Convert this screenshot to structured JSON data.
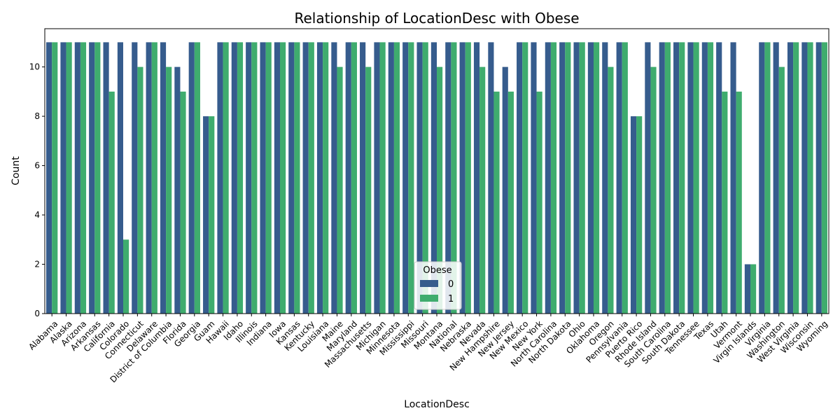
{
  "chart_data": {
    "type": "bar",
    "title": "Relationship of LocationDesc with Obese",
    "xlabel": "LocationDesc",
    "ylabel": "Count",
    "ylim": [
      0,
      11.55
    ],
    "yticks": [
      0,
      2,
      4,
      6,
      8,
      10
    ],
    "grid": false,
    "legend": {
      "title": "Obese",
      "placement": "lower-center"
    },
    "categories": [
      "Alabama",
      "Alaska",
      "Arizona",
      "Arkansas",
      "California",
      "Colorado",
      "Connecticut",
      "Delaware",
      "District of Columbia",
      "Florida",
      "Georgia",
      "Guam",
      "Hawaii",
      "Idaho",
      "Illinois",
      "Indiana",
      "Iowa",
      "Kansas",
      "Kentucky",
      "Louisiana",
      "Maine",
      "Maryland",
      "Massachusetts",
      "Michigan",
      "Minnesota",
      "Mississippi",
      "Missouri",
      "Montana",
      "National",
      "Nebraska",
      "Nevada",
      "New Hampshire",
      "New Jersey",
      "New Mexico",
      "New York",
      "North Carolina",
      "North Dakota",
      "Ohio",
      "Oklahoma",
      "Oregon",
      "Pennsylvania",
      "Puerto Rico",
      "Rhode Island",
      "South Carolina",
      "South Dakota",
      "Tennessee",
      "Texas",
      "Utah",
      "Vermont",
      "Virgin Islands",
      "Virginia",
      "Washington",
      "West Virginia",
      "Wisconsin",
      "Wyoming"
    ],
    "series": [
      {
        "name": "0",
        "color": "#365c8d",
        "values": [
          11,
          11,
          11,
          11,
          11,
          11,
          11,
          11,
          11,
          10,
          11,
          8,
          11,
          11,
          11,
          11,
          11,
          11,
          11,
          11,
          11,
          11,
          11,
          11,
          11,
          11,
          11,
          11,
          11,
          11,
          11,
          11,
          10,
          11,
          11,
          11,
          11,
          11,
          11,
          11,
          11,
          8,
          11,
          11,
          11,
          11,
          11,
          11,
          11,
          2,
          11,
          11,
          11,
          11,
          11
        ]
      },
      {
        "name": "1",
        "color": "#3fac6e",
        "values": [
          11,
          11,
          11,
          11,
          9,
          3,
          10,
          11,
          10,
          9,
          11,
          8,
          11,
          11,
          11,
          11,
          11,
          11,
          11,
          11,
          10,
          11,
          10,
          11,
          11,
          11,
          11,
          10,
          11,
          11,
          10,
          9,
          9,
          11,
          9,
          11,
          11,
          11,
          11,
          10,
          11,
          8,
          10,
          11,
          11,
          11,
          11,
          9,
          9,
          2,
          11,
          10,
          11,
          11,
          11
        ]
      }
    ]
  }
}
